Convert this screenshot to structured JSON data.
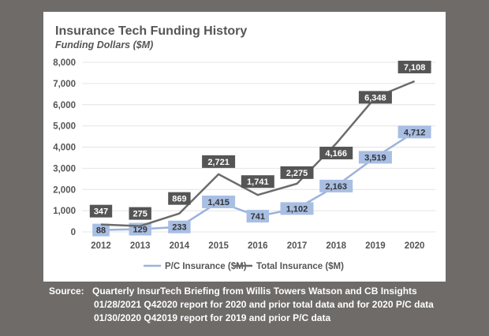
{
  "chart_data": {
    "type": "line",
    "title": "Insurance Tech Funding History",
    "subtitle": "Funding Dollars ($M)",
    "categories": [
      "2012",
      "2013",
      "2014",
      "2015",
      "2016",
      "2017",
      "2018",
      "2019",
      "2020"
    ],
    "series": [
      {
        "name": "P/C Insurance ($M)",
        "color": "#9bb3da",
        "values": [
          88,
          129,
          233,
          1415,
          741,
          1102,
          2163,
          3519,
          4712
        ],
        "labels": [
          "88",
          "129",
          "233",
          "1,415",
          "741",
          "1,102",
          "2,163",
          "3,519",
          "4,712"
        ]
      },
      {
        "name": "Total Insurance ($M)",
        "color": "#6b6b6b",
        "values": [
          347,
          275,
          869,
          2721,
          1741,
          2275,
          4166,
          6348,
          7108
        ],
        "labels": [
          "347",
          "275",
          "869",
          "2,721",
          "1,741",
          "2,275",
          "4,166",
          "6,348",
          "7,108"
        ]
      }
    ],
    "yticks": [
      "0",
      "1,000",
      "2,000",
      "3,000",
      "4,000",
      "5,000",
      "6,000",
      "7,000",
      "8,000"
    ],
    "ylim": [
      0,
      8000
    ],
    "grid": true,
    "legend": "bottom"
  },
  "source": {
    "label": "Source:",
    "lines": [
      "Quarterly InsurTech Briefing from Willis Towers Watson and CB Insights",
      "01/28/2021 Q42020 report for 2020 and prior total data and for 2020 P/C data",
      "01/30/2020 Q42019 report for 2019 and prior P/C data"
    ]
  }
}
